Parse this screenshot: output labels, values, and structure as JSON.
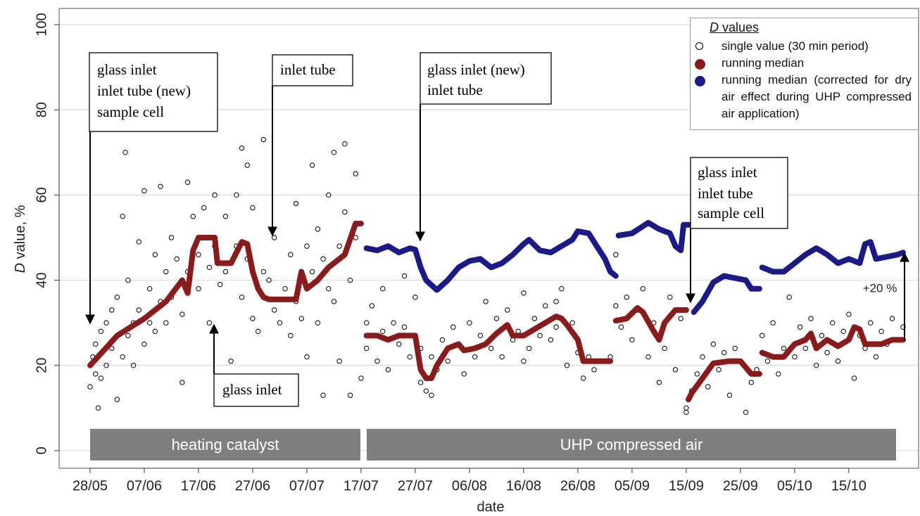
{
  "chart_data": {
    "type": "scatter",
    "x_label": "date",
    "y_label": {
      "italic": "D",
      "rest": " value, %"
    },
    "xlim": [
      -5.71,
      153
    ],
    "ylim": [
      -4.13,
      103.8
    ],
    "xticks": [
      {
        "value": 0,
        "label": "28/05"
      },
      {
        "value": 10,
        "label": "07/06"
      },
      {
        "value": 20,
        "label": "17/06"
      },
      {
        "value": 30,
        "label": "27/06"
      },
      {
        "value": 40,
        "label": "07/07"
      },
      {
        "value": 50,
        "label": "17/07"
      },
      {
        "value": 60,
        "label": "27/07"
      },
      {
        "value": 70,
        "label": "06/08"
      },
      {
        "value": 80,
        "label": "16/08"
      },
      {
        "value": 90,
        "label": "26/08"
      },
      {
        "value": 100,
        "label": "05/09"
      },
      {
        "value": 110,
        "label": "15/09"
      },
      {
        "value": 120,
        "label": "25/09"
      },
      {
        "value": 130,
        "label": "05/10"
      },
      {
        "value": 140,
        "label": "15/10"
      }
    ],
    "yticks": [
      0,
      20,
      40,
      60,
      80,
      100
    ],
    "grid": true,
    "legend_title": {
      "italic": "D",
      "rest": " values"
    },
    "legend_position": "top-right",
    "series": [
      {
        "name": "single value (30 min period)",
        "color": "#000000",
        "style": "open-points",
        "x": [
          0,
          0.5,
          1,
          1,
          1.5,
          2,
          2,
          3,
          3,
          4,
          4,
          5,
          5,
          6,
          6,
          6.5,
          7,
          7,
          8,
          8,
          9,
          9,
          10,
          10,
          11,
          11,
          12,
          12,
          13,
          13,
          14,
          14,
          15,
          15,
          16,
          17,
          17,
          18,
          18,
          19,
          20,
          20,
          21,
          22,
          22,
          23,
          23,
          24,
          25,
          25,
          26,
          27,
          27,
          28,
          28,
          29,
          29,
          30,
          30,
          31,
          32,
          32,
          33,
          34,
          34,
          35,
          36,
          37,
          37,
          38,
          38,
          39,
          40,
          40,
          41,
          41,
          42,
          42,
          43,
          43,
          44,
          44,
          45,
          45,
          46,
          46,
          47,
          47,
          48,
          48,
          49,
          49,
          50,
          51,
          51,
          52,
          53,
          54,
          54,
          55,
          56,
          57,
          58,
          58,
          59,
          60,
          61,
          61,
          62,
          63,
          63,
          64,
          65,
          66,
          67,
          68,
          69,
          70,
          71,
          72,
          73,
          74,
          75,
          76,
          77,
          78,
          79,
          80,
          80,
          81,
          82,
          83,
          84,
          85,
          86,
          86,
          87,
          88,
          89,
          90,
          91,
          92,
          93,
          96,
          97,
          97,
          98,
          99,
          100,
          101,
          102,
          103,
          104,
          105,
          106,
          107,
          108,
          109,
          110,
          110,
          111,
          112,
          113,
          114,
          115,
          116,
          117,
          118,
          119,
          120,
          121,
          122,
          123,
          124,
          125,
          126,
          127,
          128,
          129,
          130,
          131,
          132,
          133,
          134,
          135,
          136,
          137,
          138,
          139,
          140,
          141,
          142,
          143,
          144,
          145,
          146,
          147,
          148,
          149,
          150
        ],
        "values": [
          15,
          22,
          18,
          25,
          10,
          28,
          17,
          30,
          20,
          24,
          33,
          12,
          36,
          55,
          22,
          70,
          27,
          40,
          30,
          20,
          49,
          33,
          61,
          25,
          38,
          30,
          46,
          28,
          62,
          35,
          42,
          30,
          50,
          36,
          45,
          32,
          16,
          63,
          42,
          55,
          46,
          38,
          57,
          43,
          30,
          60,
          48,
          39,
          42,
          55,
          21,
          60,
          48,
          71,
          36,
          67,
          45,
          31,
          57,
          28,
          73,
          42,
          40,
          50,
          33,
          30,
          38,
          46,
          27,
          58,
          35,
          31,
          48,
          22,
          67,
          42,
          30,
          52,
          45,
          13,
          60,
          38,
          70,
          35,
          48,
          21,
          72,
          56,
          40,
          13,
          65,
          50,
          17,
          30,
          24,
          34,
          21,
          28,
          38,
          19,
          30,
          25,
          41,
          29,
          22,
          36,
          16,
          24,
          14,
          22,
          13,
          19,
          26,
          21,
          29,
          25,
          18,
          30,
          22,
          27,
          35,
          24,
          31,
          22,
          33,
          26,
          28,
          37,
          21,
          24,
          31,
          27,
          34,
          26,
          35,
          29,
          38,
          20,
          30,
          23,
          17,
          22,
          19,
          22,
          34,
          46,
          29,
          36,
          26,
          33,
          38,
          22,
          30,
          16,
          24,
          36,
          19,
          31,
          10,
          9,
          14,
          18,
          22,
          15,
          25,
          19,
          23,
          13,
          24,
          21,
          9,
          16,
          19,
          27,
          21,
          30,
          18,
          24,
          36,
          22,
          29,
          24,
          31,
          20,
          27,
          23,
          30,
          21,
          28,
          32,
          17,
          27,
          24,
          30,
          22,
          28,
          25,
          31,
          26,
          29
        ]
      },
      {
        "name": "running median",
        "color": "#8b1a1a",
        "style": "thick-line",
        "x": [
          0,
          5,
          10,
          14,
          17,
          18,
          19,
          20,
          23,
          23.5,
          26,
          28,
          29,
          30,
          31,
          32,
          33,
          38,
          39,
          40,
          42,
          44,
          46,
          47,
          49,
          50,
          50.5,
          51,
          53,
          55,
          57,
          60,
          61,
          62,
          63,
          64,
          65,
          66,
          68,
          69,
          71,
          73,
          75,
          77,
          78,
          80,
          82,
          84,
          86,
          87,
          88,
          90,
          91,
          96,
          96.5,
          97,
          99,
          101,
          102,
          104,
          105,
          106,
          108,
          110,
          110.2,
          110.4,
          111,
          113,
          115,
          118,
          120,
          122,
          123.5,
          123.7,
          124,
          126,
          128,
          130,
          132,
          133,
          134,
          136,
          138,
          140,
          141,
          142,
          143,
          146,
          148,
          150
        ],
        "values": [
          20,
          27,
          31,
          35,
          40,
          37,
          47,
          50,
          50,
          44,
          44,
          49,
          48.5,
          42,
          38,
          36,
          35.5,
          35.5,
          42,
          38,
          40,
          43,
          45,
          46,
          53.3,
          53.3,
          null,
          27,
          27,
          26,
          27,
          27,
          19,
          17,
          17,
          20,
          22,
          24,
          25,
          23.5,
          24,
          25,
          27.5,
          29.5,
          27,
          27,
          28.5,
          30,
          31.5,
          31,
          29.5,
          26,
          21,
          21,
          null,
          30.5,
          31,
          33.5,
          32.5,
          28,
          26,
          30,
          33,
          33,
          null,
          12,
          13.5,
          17,
          20.5,
          21,
          21,
          18,
          18,
          null,
          23,
          22,
          22,
          25,
          26,
          27.5,
          24,
          26,
          24.5,
          26,
          29,
          28.5,
          25,
          25,
          26,
          26
        ]
      },
      {
        "name": "running median (corrected for dry air effect during UHP compressed air application)",
        "color": "#1a1a8b",
        "style": "thick-line",
        "x": [
          51,
          53,
          55,
          57,
          59,
          60,
          61,
          62,
          64,
          66,
          68,
          70,
          72,
          74,
          76,
          78,
          80,
          81,
          83,
          85,
          87,
          89,
          90,
          92,
          93,
          95,
          96,
          97,
          97.2,
          97.5,
          100,
          103,
          105,
          107,
          108,
          109,
          109.5,
          111,
          111.2,
          111.4,
          113,
          115,
          117,
          119,
          121,
          122,
          123.5,
          123.7,
          124,
          126,
          128,
          130,
          132,
          134,
          136,
          138,
          140,
          142,
          143,
          144,
          145,
          147,
          149,
          150
        ],
        "values": [
          47.5,
          47,
          48,
          46.5,
          47.5,
          47.2,
          43,
          40,
          37.7,
          40,
          43,
          44.5,
          45,
          43,
          44,
          46,
          48.5,
          49.5,
          47,
          46.5,
          48,
          49.5,
          51.5,
          51,
          49,
          45,
          42,
          41,
          null,
          50.5,
          51,
          53.5,
          52,
          51,
          48,
          47,
          53,
          53,
          null,
          32.5,
          35,
          39.5,
          41,
          40.5,
          40,
          38,
          38,
          null,
          43,
          42,
          42,
          44,
          46,
          47.5,
          46,
          44,
          45,
          44,
          48.5,
          49,
          45,
          45.5,
          46,
          46.5
        ]
      }
    ],
    "bands": [
      "heating catalyst",
      "UHP compressed air"
    ],
    "callouts": [
      {
        "lines": [
          "glass inlet",
          "inlet tube (new)",
          "sample cell"
        ]
      },
      {
        "lines": [
          "inlet tube"
        ]
      },
      {
        "lines": [
          "glass inlet"
        ]
      },
      {
        "lines": [
          "glass inlet (new)",
          "inlet tube"
        ]
      },
      {
        "lines": [
          "glass inlet",
          "inlet tube",
          "sample cell"
        ]
      }
    ],
    "change_label": "+20 %"
  }
}
